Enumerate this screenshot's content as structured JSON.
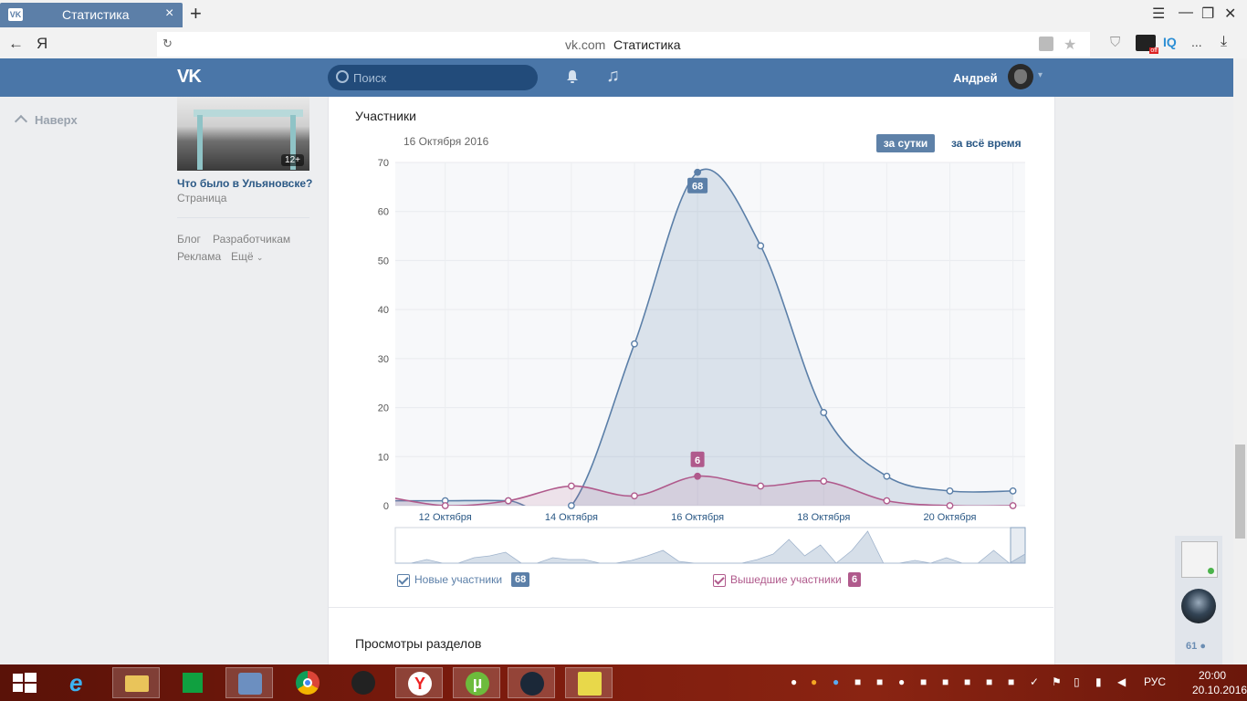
{
  "browser": {
    "tab_title": "Статистика",
    "tab_favicon": "VK",
    "new_tab": "+",
    "close_tab": "×",
    "address_host": "vk.com",
    "address_title": "Статистика",
    "back": "←",
    "yandex": "Я",
    "reload": "↻",
    "ext_iq": "IQ",
    "ext_dots": "...",
    "download": "⤓"
  },
  "header": {
    "logo": "VK",
    "search_placeholder": "Поиск",
    "user_name": "Андрей",
    "caret": "▾"
  },
  "left": {
    "back_to_top": "Наверх",
    "ad_age": "12+",
    "ad_title": "Что было в Ульяновске?",
    "ad_subtitle": "Страница",
    "footer_links": [
      "Блог",
      "Разработчикам",
      "Реклама",
      "Ещё"
    ]
  },
  "main": {
    "section_title": "Участники",
    "date_label": "16 Октября 2016",
    "btn_day": "за сутки",
    "btn_all": "за всё время",
    "section2_title": "Просмотры разделов"
  },
  "chart_data": {
    "type": "area",
    "yticks": [
      0,
      10,
      20,
      30,
      40,
      50,
      60,
      70
    ],
    "ylim": [
      0,
      70
    ],
    "xtick_labels": [
      "12 Октября",
      "14 Октября",
      "16 Октября",
      "18 Октября",
      "20 Октября"
    ],
    "x": [
      "11 Окт",
      "12 Окт",
      "13 Окт",
      "14 Окт",
      "15 Окт",
      "16 Окт",
      "17 Окт",
      "18 Окт",
      "19 Окт",
      "20 Окт",
      "21 Окт"
    ],
    "series": [
      {
        "name": "Новые участники",
        "color": "#5b7fa8",
        "values": [
          1,
          1,
          1,
          0,
          33,
          68,
          53,
          19,
          6,
          3,
          3
        ],
        "highlight_label": "68",
        "highlight_index": 5
      },
      {
        "name": "Вышедшие участники",
        "color": "#b05a8c",
        "values": [
          2,
          0,
          1,
          4,
          2,
          6,
          4,
          5,
          1,
          0,
          0
        ],
        "highlight_label": "6",
        "highlight_index": 5
      }
    ],
    "legend": [
      {
        "label": "Новые участники",
        "value": "68",
        "color": "#5b7fa8"
      },
      {
        "label": "Вышедшие участники",
        "value": "6",
        "color": "#b05a8c"
      }
    ]
  },
  "right_panel": {
    "online_count": "61"
  },
  "taskbar": {
    "lang": "РУС",
    "time": "20:00",
    "date": "20.10.2016"
  }
}
